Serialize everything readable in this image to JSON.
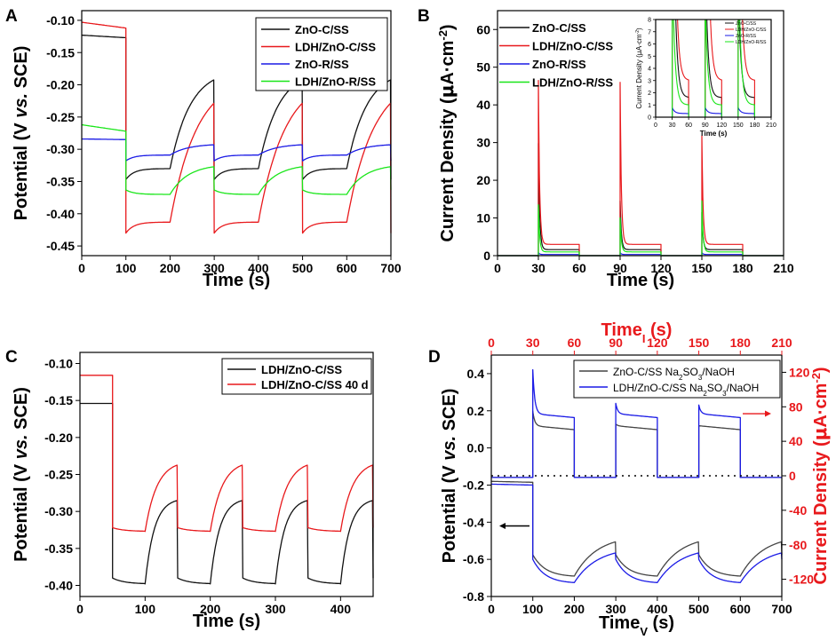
{
  "figure": {
    "panels": [
      "A",
      "B",
      "C",
      "D"
    ]
  },
  "colors": {
    "black": "#111111",
    "red": "#e8191c",
    "blue": "#1a1ae6",
    "green": "#19e619",
    "gray": "#444444",
    "axis_red": "#e8191c"
  },
  "chart_data": [
    {
      "panel": "A",
      "type": "line",
      "title": "",
      "xlabel": "Time (s)",
      "ylabel_parts": [
        "Potential (V ",
        "vs.",
        " SCE)"
      ],
      "xlim": [
        0,
        700
      ],
      "ylim": [
        -0.465,
        -0.085
      ],
      "xticks": [
        0,
        100,
        200,
        300,
        400,
        500,
        600,
        700
      ],
      "xtick_labels": [
        "0",
        "100",
        "200",
        "300",
        "400",
        "500",
        "600",
        "700"
      ],
      "yticks": [
        -0.1,
        -0.15,
        -0.2,
        -0.25,
        -0.3,
        -0.35,
        -0.4,
        -0.45
      ],
      "ytick_labels": [
        "-0.10",
        "-0.15",
        "-0.20",
        "-0.25",
        "-0.30",
        "-0.35",
        "-0.40",
        "-0.45"
      ],
      "legend_position": "top-right",
      "series": [
        {
          "name": "ZnO-C/SS",
          "color": "#111111",
          "dark": -0.123,
          "dark_end": -0.127,
          "on_start": -0.347,
          "on_end": -0.33,
          "off_end": -0.192,
          "off_time_const": 45
        },
        {
          "name": "LDH/ZnO-C/SS",
          "color": "#e8191c",
          "dark": -0.103,
          "dark_end": -0.112,
          "on_start": -0.43,
          "on_end": -0.413,
          "off_end": -0.228,
          "off_time_const": 60
        },
        {
          "name": "ZnO-R/SS",
          "color": "#1a1ae6",
          "dark": -0.284,
          "dark_end": -0.285,
          "on_start": -0.318,
          "on_end": -0.309,
          "off_end": -0.293,
          "off_time_const": 40
        },
        {
          "name": "LDH/ZnO-R/SS",
          "color": "#19e619",
          "dark": -0.262,
          "dark_end": -0.272,
          "on_start": -0.363,
          "on_end": -0.37,
          "off_end": -0.327,
          "off_time_const": 40
        }
      ]
    },
    {
      "panel": "B",
      "type": "line",
      "title": "",
      "xlabel": "Time (s)",
      "ylabel_parts": [
        "Current Density (",
        "μ",
        "A·cm",
        "-2",
        ")"
      ],
      "xlim": [
        0,
        210
      ],
      "ylim": [
        0,
        65
      ],
      "xticks": [
        0,
        30,
        60,
        90,
        120,
        150,
        180,
        210
      ],
      "xtick_labels": [
        "0",
        "30",
        "60",
        "90",
        "120",
        "150",
        "180",
        "210"
      ],
      "yticks": [
        0,
        10,
        20,
        30,
        40,
        50,
        60
      ],
      "ytick_labels": [
        "0",
        "10",
        "20",
        "30",
        "40",
        "50",
        "60"
      ],
      "legend_position": "top-left",
      "on_windows": [
        [
          30,
          60
        ],
        [
          90,
          120
        ],
        [
          150,
          180
        ]
      ],
      "series": [
        {
          "name": "ZnO-C/SS",
          "color": "#111111",
          "peaks": [
            29.8,
            14.5,
            11.5
          ],
          "plateau": 1.6
        },
        {
          "name": "LDH/ZnO-C/SS",
          "color": "#e8191c",
          "peaks": [
            46.5,
            46.0,
            31.8
          ],
          "plateau": 3.0
        },
        {
          "name": "ZnO-R/SS",
          "color": "#1a1ae6",
          "peaks": [
            0.8,
            0.8,
            0.8
          ],
          "plateau": 0.3
        },
        {
          "name": "LDH/ZnO-R/SS",
          "color": "#19e619",
          "peaks": [
            13.5,
            10.0,
            14.5
          ],
          "plateau": 1.0
        }
      ],
      "inset": {
        "xlabel": "Time (s)",
        "ylabel_parts": [
          "Current Density (",
          "μ",
          "A·cm",
          "-2",
          ")"
        ],
        "xlim": [
          0,
          210
        ],
        "ylim": [
          0,
          8
        ],
        "xticks": [
          0,
          30,
          60,
          90,
          120,
          150,
          180,
          210
        ],
        "xtick_labels": [
          "0",
          "30",
          "60",
          "90",
          "120",
          "150",
          "180",
          "210"
        ],
        "yticks": [
          0,
          1,
          2,
          3,
          4,
          5,
          6,
          7,
          8
        ],
        "ytick_labels": [
          "0",
          "1",
          "2",
          "3",
          "4",
          "5",
          "6",
          "7",
          "8"
        ],
        "legend_position": "top-right"
      }
    },
    {
      "panel": "C",
      "type": "line",
      "title": "",
      "xlabel": "Time (s)",
      "ylabel_parts": [
        "Potential (V ",
        "vs.",
        " SCE)"
      ],
      "xlim": [
        0,
        450
      ],
      "ylim": [
        -0.415,
        -0.085
      ],
      "xticks": [
        0,
        100,
        200,
        300,
        400
      ],
      "xtick_labels": [
        "0",
        "100",
        "200",
        "300",
        "400"
      ],
      "yticks": [
        -0.1,
        -0.15,
        -0.2,
        -0.25,
        -0.3,
        -0.35,
        -0.4
      ],
      "ytick_labels": [
        "-0.10",
        "-0.15",
        "-0.20",
        "-0.25",
        "-0.30",
        "-0.35",
        "-0.40"
      ],
      "legend_position": "top-right",
      "series": [
        {
          "name": "LDH/ZnO-C/SS",
          "color": "#111111",
          "dark": -0.154,
          "dark_end": -0.154,
          "on_start": -0.39,
          "on_end": -0.398,
          "off_end": -0.285,
          "off_time_const": 14
        },
        {
          "name": "LDH/ZnO-C/SS 40 d",
          "color": "#e8191c",
          "dark": -0.116,
          "dark_end": -0.116,
          "on_start": -0.322,
          "on_end": -0.327,
          "off_end": -0.237,
          "off_time_const": 18
        }
      ]
    },
    {
      "panel": "D",
      "type": "line",
      "title": "",
      "xlabel_main": "Time",
      "xlabel_sub": "V",
      "xlabel_unit": " (s)",
      "top_xlabel_main": "Time",
      "top_xlabel_sub": "I",
      "top_xlabel_unit": " (s)",
      "ylabel_parts": [
        "Potential (V ",
        "vs.",
        " SCE)"
      ],
      "right_ylabel_parts": [
        "Current Density (",
        "μ",
        "A·cm",
        "-2",
        ")"
      ],
      "xlim": [
        0,
        700
      ],
      "ylim": [
        -0.8,
        0.5
      ],
      "top_xlim": [
        0,
        210
      ],
      "right_ylim": [
        -140,
        140
      ],
      "xticks": [
        0,
        100,
        200,
        300,
        400,
        500,
        600,
        700
      ],
      "xtick_labels": [
        "0",
        "100",
        "200",
        "300",
        "400",
        "500",
        "600",
        "700"
      ],
      "top_xticks": [
        0,
        30,
        60,
        90,
        120,
        150,
        180,
        210
      ],
      "top_xtick_labels": [
        "0",
        "30",
        "60",
        "90",
        "120",
        "150",
        "180",
        "210"
      ],
      "yticks": [
        0.4,
        0.2,
        0.0,
        -0.2,
        -0.4,
        -0.6,
        -0.8
      ],
      "ytick_labels": [
        "0.4",
        "0.2",
        "0.0",
        "-0.2",
        "-0.4",
        "-0.6",
        "-0.8"
      ],
      "right_yticks": [
        120,
        80,
        40,
        0,
        -40,
        -80,
        -120
      ],
      "right_ytick_labels": [
        "120",
        "80",
        "40",
        "0",
        "-40",
        "-80",
        "-120"
      ],
      "legend_position": "top-right",
      "dotted_baseline_current": 0,
      "series_potential": [
        {
          "name": "ZnO-C/SS Na2SO3/NaOH",
          "color": "#444444",
          "dark": -0.18,
          "dark_end": -0.185,
          "on_start": -0.575,
          "on_end": -0.69,
          "off_end": -0.505
        },
        {
          "name": "LDH/ZnO-C/SS Na2SO3/NaOH",
          "color": "#1a1ae6",
          "dark": -0.195,
          "dark_end": -0.2,
          "on_start": -0.6,
          "on_end": -0.725,
          "off_end": -0.565
        }
      ],
      "series_current": [
        {
          "name": "ZnO-C/SS Na2SO3/NaOH",
          "color": "#444444",
          "peaks": [
            75,
            60,
            58
          ],
          "plateau": 58
        },
        {
          "name": "LDH/ZnO-C/SS Na2SO3/NaOH",
          "color": "#1a1ae6",
          "peaks": [
            123,
            84,
            82
          ],
          "plateau": 72
        }
      ],
      "legend": [
        {
          "base": "ZnO-C/SS Na",
          "sub1": "2",
          "mid": "SO",
          "sub2": "3",
          "tail": "/NaOH",
          "color": "#444444"
        },
        {
          "base": "LDH/ZnO-C/SS Na",
          "sub1": "2",
          "mid": "SO",
          "sub2": "3",
          "tail": "/NaOH",
          "color": "#1a1ae6"
        }
      ]
    }
  ]
}
